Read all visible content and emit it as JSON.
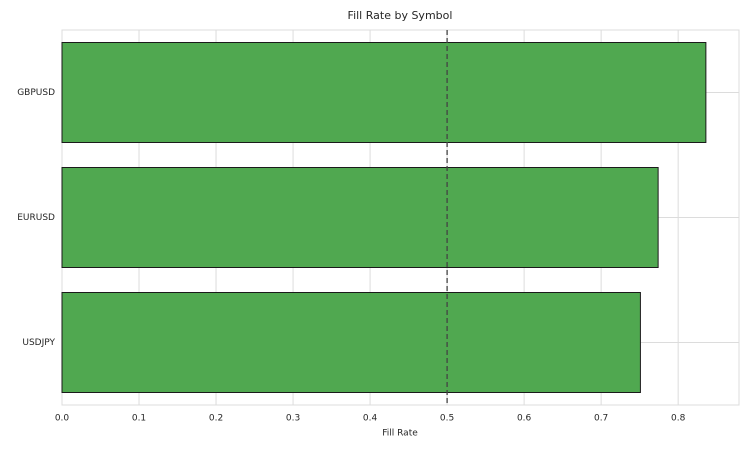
{
  "chart_data": {
    "type": "barh",
    "title": "Fill Rate by Symbol",
    "x_label": "Fill Rate",
    "categories": [
      "GBPUSD",
      "EURUSD",
      "USDJPY"
    ],
    "values": [
      0.836,
      0.774,
      0.751
    ],
    "color": "#4ca64c",
    "xlim": [
      0,
      0.879
    ],
    "xticks": [
      {
        "value": 0,
        "label": "0.0"
      },
      0.1,
      0.2,
      0.3,
      0.4,
      0.5,
      0.6,
      0.7,
      0.8
    ],
    "reference_line": 0.5,
    "grid": true
  }
}
